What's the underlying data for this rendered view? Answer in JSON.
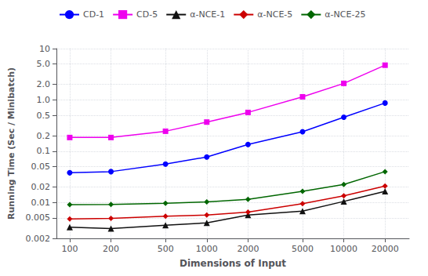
{
  "chart_data": {
    "type": "line",
    "xlabel": "Dimensions of Input",
    "ylabel": "Running Time (Sec / Minibatch)",
    "x": [
      100,
      200,
      500,
      1000,
      2000,
      5000,
      10000,
      20000
    ],
    "series": [
      {
        "name": "CD-1",
        "color": "#0000ff",
        "marker": "circle",
        "line_style": "solid",
        "values": [
          0.038,
          0.04,
          0.056,
          0.077,
          0.135,
          0.24,
          0.46,
          0.87
        ]
      },
      {
        "name": "CD-5",
        "color": "#ee00ee",
        "marker": "square",
        "line_style": "solid",
        "values": [
          0.185,
          0.185,
          0.245,
          0.37,
          0.57,
          1.15,
          2.1,
          4.75
        ]
      },
      {
        "name": "α-NCE-1",
        "color": "#111111",
        "marker": "triangle",
        "line_style": "solid",
        "values": [
          0.0033,
          0.0031,
          0.0036,
          0.004,
          0.0057,
          0.0068,
          0.0105,
          0.0165
        ]
      },
      {
        "name": "α-NCE-5",
        "color": "#cc0000",
        "marker": "diamond",
        "line_style": "solid",
        "values": [
          0.0048,
          0.0049,
          0.0054,
          0.0057,
          0.0065,
          0.0095,
          0.0135,
          0.021
        ]
      },
      {
        "name": "α-NCE-25",
        "color": "#006600",
        "marker": "diamond",
        "line_style": "solid",
        "values": [
          0.0091,
          0.0092,
          0.0097,
          0.0103,
          0.0115,
          0.0165,
          0.0225,
          0.04
        ]
      }
    ],
    "log": true,
    "xlim": [
      80,
      30000
    ],
    "xticks": [
      100,
      200,
      500,
      1000,
      2000,
      5000,
      10000,
      20000
    ],
    "ylim": [
      0.002,
      10
    ],
    "yticks": [
      0.002,
      0.005,
      0.01,
      0.02,
      0.05,
      0.1,
      0.2,
      0.5,
      {
        "value": 1.0,
        "label": "1.0"
      },
      {
        "value": 2.0,
        "label": "2.0"
      },
      {
        "value": 5.0,
        "label": "5.0"
      },
      10
    ],
    "grid": true,
    "legend": "upper left"
  }
}
